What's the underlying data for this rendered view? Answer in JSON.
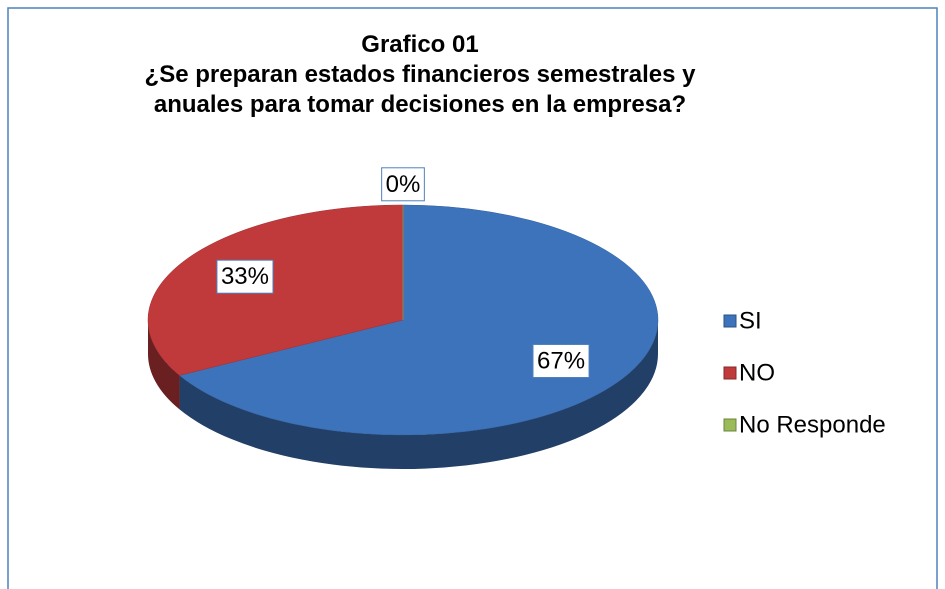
{
  "chart_data": {
    "type": "pie",
    "title": "Grafico 01",
    "subtitle": "¿Se preparan estados financieros semestrales y anuales para tomar decisiones en la empresa?",
    "categories": [
      "SI",
      "NO",
      "No Responde"
    ],
    "values": [
      67,
      33,
      0
    ],
    "value_labels": [
      "67%",
      "33%",
      "0%"
    ],
    "colors": [
      "#3d73bb",
      "#c0393b",
      "#9bbb59"
    ],
    "legend": "right"
  }
}
